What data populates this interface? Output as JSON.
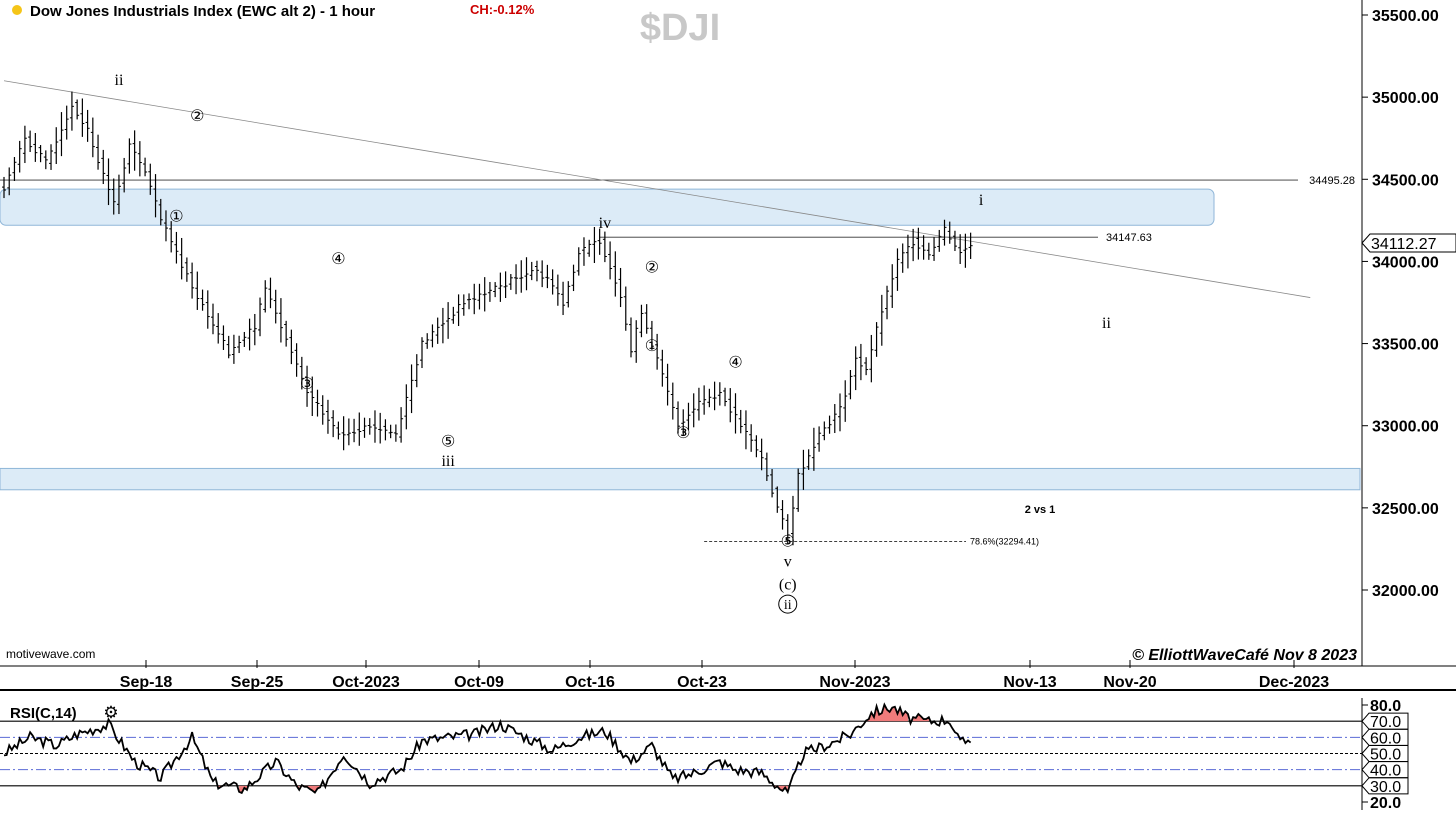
{
  "header": {
    "symbol_title": "Dow Jones Industrials Index (EWC alt 2) - 1 hour",
    "change": "CH:-0.12%",
    "ticker": "$DJI",
    "status_dot_color": "#f5c518"
  },
  "footer": {
    "watermark": "motivewave.com",
    "copyright": "© ElliottWaveCafé Nov 8 2023"
  },
  "colors": {
    "zone_fill": "#dcebf7",
    "zone_stroke": "#8fb6d8",
    "bar": "#000000",
    "rsi_line": "#000000",
    "rsi_overbought_fill": "#f07b7b",
    "rsi_band_lines": "#5b6bd6",
    "label_red": "#cc0000",
    "ticker_gray": "#c8c8c8"
  },
  "chart_data": [
    {
      "type": "ohlc",
      "ylim": [
        31600,
        35750
      ],
      "y_ticks": [
        "35500.00",
        "35000.00",
        "34500.00",
        "34000.00",
        "33500.00",
        "33000.00",
        "32500.00",
        "32000.00"
      ],
      "y_tick_values": [
        35500,
        35000,
        34500,
        34000,
        33500,
        33000,
        32500,
        32000
      ],
      "x_ticks": [
        "Sep-18",
        "Sep-25",
        "Oct-2023",
        "Oct-09",
        "Oct-16",
        "Oct-23",
        "Nov-2023",
        "Nov-13",
        "Nov-20",
        "Dec-2023"
      ],
      "last_price": "34112.27",
      "last_price_value": 34112.27,
      "price_path": [
        {
          "t": 0,
          "p": 34450
        },
        {
          "t": 4,
          "p": 34750
        },
        {
          "t": 8,
          "p": 34600
        },
        {
          "t": 13,
          "p": 34950
        },
        {
          "t": 16,
          "p": 34800
        },
        {
          "t": 21,
          "p": 34350
        },
        {
          "t": 24,
          "p": 34700
        },
        {
          "t": 27,
          "p": 34550
        },
        {
          "t": 30,
          "p": 34250
        },
        {
          "t": 36,
          "p": 33850
        },
        {
          "t": 43,
          "p": 33450
        },
        {
          "t": 48,
          "p": 33600
        },
        {
          "t": 50,
          "p": 33850
        },
        {
          "t": 53,
          "p": 33600
        },
        {
          "t": 58,
          "p": 33200
        },
        {
          "t": 64,
          "p": 32950
        },
        {
          "t": 70,
          "p": 33000
        },
        {
          "t": 75,
          "p": 32950
        },
        {
          "t": 80,
          "p": 33500
        },
        {
          "t": 88,
          "p": 33750
        },
        {
          "t": 95,
          "p": 33850
        },
        {
          "t": 101,
          "p": 33950
        },
        {
          "t": 104,
          "p": 33900
        },
        {
          "t": 107,
          "p": 33750
        },
        {
          "t": 110,
          "p": 34050
        },
        {
          "t": 114,
          "p": 34130
        },
        {
          "t": 118,
          "p": 33800
        },
        {
          "t": 120,
          "p": 33450
        },
        {
          "t": 122,
          "p": 33700
        },
        {
          "t": 124,
          "p": 33500
        },
        {
          "t": 127,
          "p": 33200
        },
        {
          "t": 129,
          "p": 33000
        },
        {
          "t": 133,
          "p": 33150
        },
        {
          "t": 137,
          "p": 33200
        },
        {
          "t": 140,
          "p": 33050
        },
        {
          "t": 145,
          "p": 32800
        },
        {
          "t": 148,
          "p": 32500
        },
        {
          "t": 150,
          "p": 32330
        },
        {
          "t": 152,
          "p": 32700
        },
        {
          "t": 156,
          "p": 32950
        },
        {
          "t": 160,
          "p": 33100
        },
        {
          "t": 163,
          "p": 33400
        },
        {
          "t": 165,
          "p": 33350
        },
        {
          "t": 168,
          "p": 33700
        },
        {
          "t": 171,
          "p": 34000
        },
        {
          "t": 174,
          "p": 34120
        },
        {
          "t": 177,
          "p": 34050
        },
        {
          "t": 180,
          "p": 34200
        },
        {
          "t": 183,
          "p": 34050
        },
        {
          "t": 185,
          "p": 34110
        }
      ],
      "levels": [
        {
          "label": "34495.28",
          "value": 34495.28
        },
        {
          "label": "34147.63",
          "value": 34147.63
        }
      ],
      "fib_level": {
        "label": "78.6%(32294.41)",
        "value": 32294.41
      },
      "zones": [
        {
          "low": 34220,
          "high": 34440
        },
        {
          "low": 32610,
          "high": 32740
        }
      ],
      "trendline": [
        {
          "t": 0,
          "p": 35100
        },
        {
          "t": 250,
          "p": 33780
        }
      ],
      "annotation_note": "2 vs 1",
      "wave_labels": [
        {
          "text": "ii",
          "t": 22,
          "p": 35080,
          "circled": false
        },
        {
          "text": "①",
          "t": 33,
          "p": 34250,
          "circled": true
        },
        {
          "text": "②",
          "t": 37,
          "p": 34860,
          "circled": true
        },
        {
          "text": "④",
          "t": 64,
          "p": 33990,
          "circled": true
        },
        {
          "text": "③",
          "t": 58,
          "p": 33230,
          "circled": true
        },
        {
          "text": "⑤",
          "t": 85,
          "p": 32880,
          "circled": true
        },
        {
          "text": "iii",
          "t": 85,
          "p": 32760,
          "circled": false
        },
        {
          "text": "iv",
          "t": 115,
          "p": 34210,
          "circled": false
        },
        {
          "text": "②",
          "t": 124,
          "p": 33940,
          "circled": true
        },
        {
          "text": "①",
          "t": 124,
          "p": 33460,
          "circled": true
        },
        {
          "text": "④",
          "t": 140,
          "p": 33360,
          "circled": true
        },
        {
          "text": "③",
          "t": 130,
          "p": 32930,
          "circled": true
        },
        {
          "text": "⑤",
          "t": 150,
          "p": 32270,
          "circled": true
        },
        {
          "text": "v",
          "t": 150,
          "p": 32150,
          "circled": false
        },
        {
          "text": "(c)",
          "t": 150,
          "p": 32010,
          "circled": false
        },
        {
          "text": "ii",
          "t": 150,
          "p": 31890,
          "circled": true
        },
        {
          "text": "i",
          "t": 187,
          "p": 34350,
          "circled": false
        },
        {
          "text": "ii",
          "t": 211,
          "p": 33600,
          "circled": false
        }
      ]
    },
    {
      "type": "line",
      "title": "RSI(C,14)",
      "ylim": [
        20,
        85
      ],
      "y_ticks": [
        "80.0",
        "70.0",
        "60.0",
        "50.0",
        "40.0",
        "30.0",
        "20.0"
      ],
      "y_tick_values": [
        80,
        70,
        60,
        50,
        40,
        30,
        20
      ],
      "boxed_ticks": [
        "70.0",
        "60.0",
        "50.0",
        "40.0",
        "30.0"
      ],
      "overbought": 70,
      "oversold": 30,
      "bands": [
        60,
        40
      ],
      "midline": 50,
      "rsi_path": [
        {
          "t": 0,
          "p": 50
        },
        {
          "t": 5,
          "p": 60
        },
        {
          "t": 10,
          "p": 55
        },
        {
          "t": 14,
          "p": 62
        },
        {
          "t": 20,
          "p": 68
        },
        {
          "t": 25,
          "p": 45
        },
        {
          "t": 30,
          "p": 35
        },
        {
          "t": 36,
          "p": 60
        },
        {
          "t": 40,
          "p": 32
        },
        {
          "t": 46,
          "p": 28
        },
        {
          "t": 52,
          "p": 45
        },
        {
          "t": 56,
          "p": 30
        },
        {
          "t": 60,
          "p": 25
        },
        {
          "t": 65,
          "p": 50
        },
        {
          "t": 70,
          "p": 32
        },
        {
          "t": 76,
          "p": 40
        },
        {
          "t": 80,
          "p": 58
        },
        {
          "t": 90,
          "p": 62
        },
        {
          "t": 95,
          "p": 68
        },
        {
          "t": 100,
          "p": 60
        },
        {
          "t": 105,
          "p": 52
        },
        {
          "t": 110,
          "p": 60
        },
        {
          "t": 115,
          "p": 64
        },
        {
          "t": 120,
          "p": 45
        },
        {
          "t": 124,
          "p": 55
        },
        {
          "t": 128,
          "p": 34
        },
        {
          "t": 132,
          "p": 38
        },
        {
          "t": 137,
          "p": 45
        },
        {
          "t": 140,
          "p": 40
        },
        {
          "t": 145,
          "p": 38
        },
        {
          "t": 150,
          "p": 25
        },
        {
          "t": 153,
          "p": 50
        },
        {
          "t": 158,
          "p": 56
        },
        {
          "t": 162,
          "p": 62
        },
        {
          "t": 166,
          "p": 75
        },
        {
          "t": 170,
          "p": 79
        },
        {
          "t": 173,
          "p": 72
        },
        {
          "t": 177,
          "p": 70
        },
        {
          "t": 181,
          "p": 71
        },
        {
          "t": 183,
          "p": 56
        },
        {
          "t": 185,
          "p": 59
        }
      ]
    }
  ]
}
